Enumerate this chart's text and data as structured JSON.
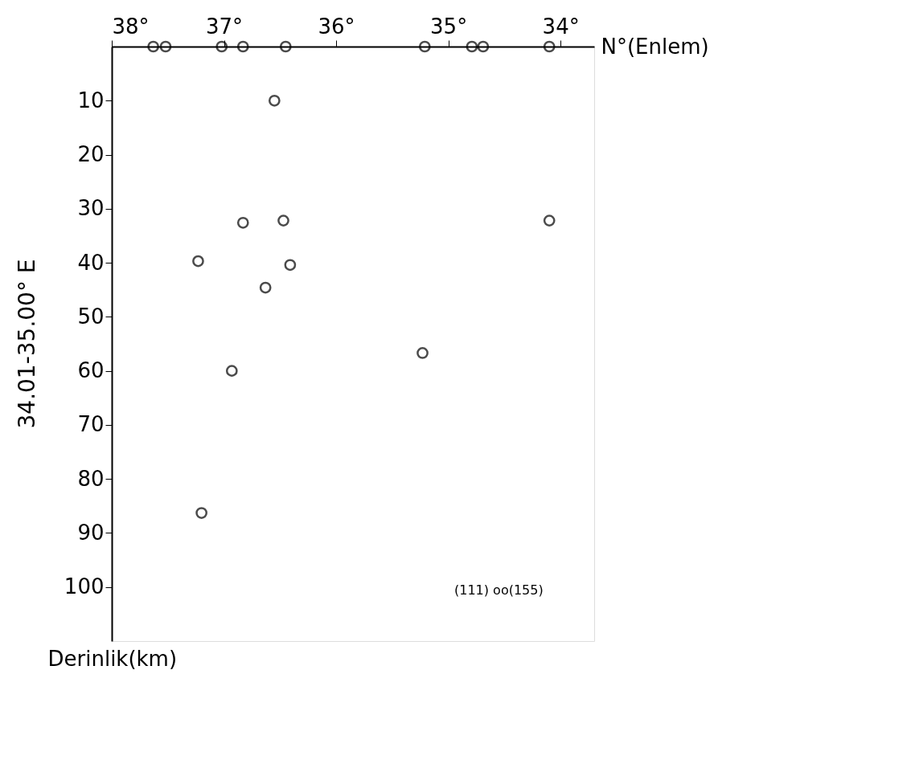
{
  "chart_data": {
    "type": "scatter",
    "title": "34.01-35.00° E",
    "xlabel": "N°(Enlem)",
    "ylabel": "Derinlik(km)",
    "x": [
      36.55,
      36.83,
      36.47,
      37.23,
      36.41,
      36.63,
      36.93,
      35.23,
      37.2,
      34.1,
      37.63,
      37.52,
      37.02,
      36.83,
      36.45,
      35.21,
      34.79,
      34.69,
      34.1
    ],
    "series": [
      {
        "color": "#000000",
        "values": [
          10,
          32.6,
          32.2,
          39.7,
          40.4,
          44.6,
          60,
          56.7,
          86.3,
          32.2,
          0,
          0,
          0,
          0,
          0,
          0,
          0,
          0,
          0
        ]
      }
    ],
    "xlim": [
      38,
      33.7
    ],
    "xticks": [
      {
        "value": 38,
        "label": "38°"
      },
      {
        "value": 37,
        "label": "37°"
      },
      {
        "value": 36,
        "label": "36°"
      },
      {
        "value": 35,
        "label": "35°"
      },
      {
        "value": 34,
        "label": "34°"
      }
    ],
    "ylim": [
      110,
      0
    ],
    "yticks": [
      10,
      20,
      30,
      40,
      50,
      60,
      70,
      80,
      90,
      100
    ],
    "annotations": [
      "(111) oo(155)"
    ],
    "marker": "circle",
    "grid": false
  }
}
